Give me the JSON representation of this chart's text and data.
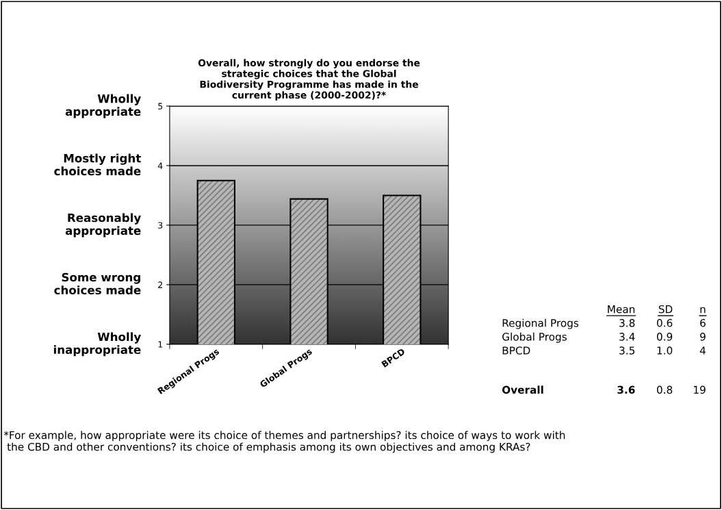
{
  "chart_data": {
    "type": "bar",
    "title": "Overall, how strongly do you endorse the\nstrategic choices that the Global\nBiodiversity Programme has made in the\ncurrent phase (2000-2002)?*",
    "categories": [
      "Regional Progs",
      "Global Progs",
      "BPCD"
    ],
    "values": [
      3.75,
      3.44,
      3.5
    ],
    "color": "#b4b4b4",
    "ylim": [
      1,
      5
    ],
    "yticks": [
      1,
      2,
      3,
      4,
      5
    ],
    "grid": "y",
    "annotations": [
      "Wholly\ninappropriate",
      "Some wrong\nchoices made",
      "Reasonably\nappropriate",
      "Mostly right\nchoices made",
      "Wholly\nappropriate",
      "*For example, how appropriate were its choice of themes and partnerships? its choice of ways to work with\n the CBD and other conventions? its choice of emphasis among its own objectives and among KRAs?",
      "Mean",
      "SD",
      "n",
      "Regional Progs",
      "3.8",
      "0.6",
      "6",
      "Global Progs",
      "3.4",
      "0.9",
      "9",
      "BPCD",
      "3.5",
      "1.0",
      "4",
      "Overall",
      "3.6",
      "0.8",
      "19"
    ]
  }
}
